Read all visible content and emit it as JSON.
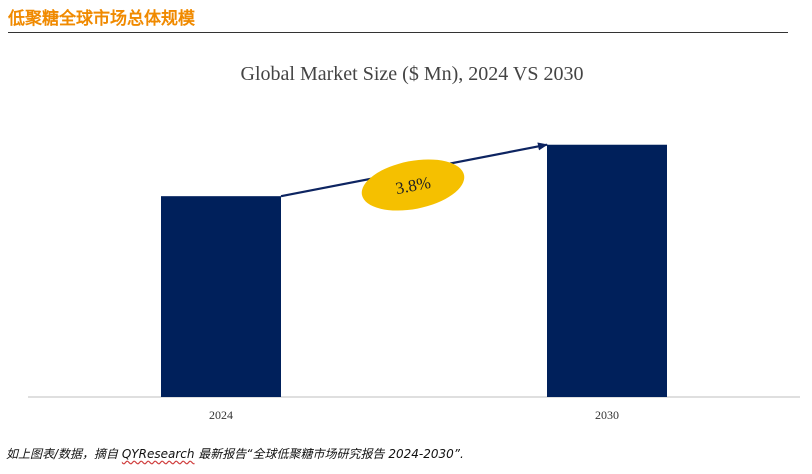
{
  "header": {
    "title": "低聚糖全球市场总体规模"
  },
  "chart_data": {
    "type": "bar",
    "title": "Global Market Size ($ Mn), 2024 VS 2030",
    "categories": [
      "2024",
      "2030"
    ],
    "values": [
      203,
      255
    ],
    "ylim": [
      0,
      280
    ],
    "xlabel": "",
    "ylabel": "",
    "grid": false,
    "legend": "none",
    "bar_color": "#00205b",
    "annotation": {
      "label": "3.8%",
      "type": "CAGR",
      "color": "#f5c000",
      "arrow_color": "#0d2461"
    }
  },
  "footer": {
    "prefix": "如上图表/数据，摘自 ",
    "brand": "QYResearch",
    "suffix": " 最新报告“全球低聚糖市场研究报告 2024-2030”."
  }
}
